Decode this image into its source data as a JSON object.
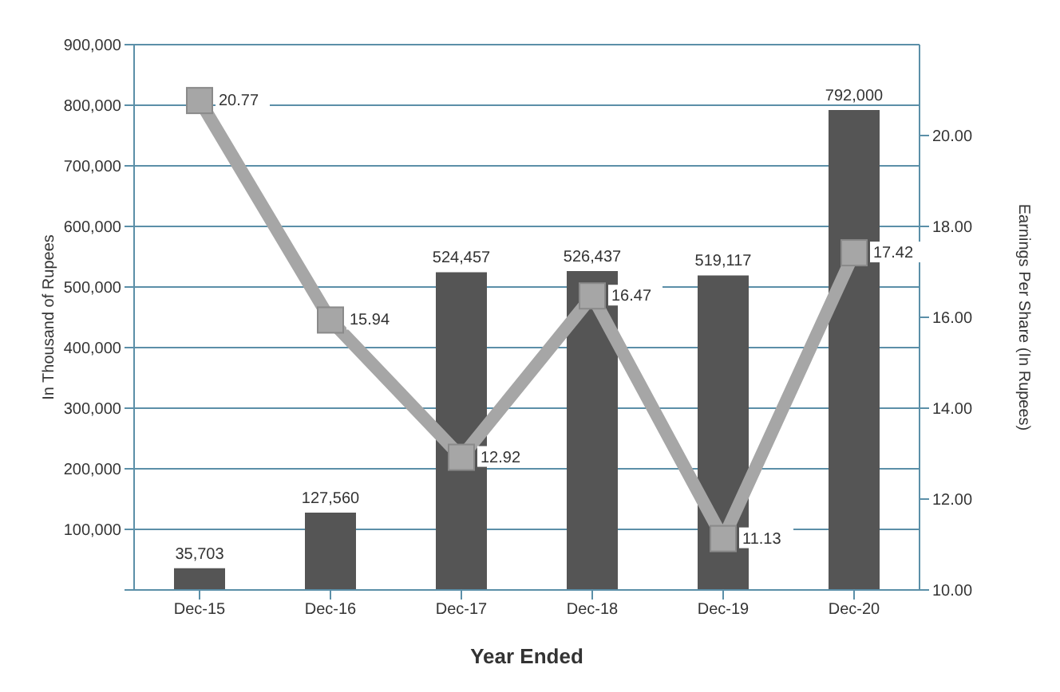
{
  "chart_data": {
    "type": "bar",
    "xlabel": "Year Ended",
    "ylabel": "In Thousand of Rupees",
    "y2label": "Earnings Per Share (In Rupees)",
    "categories": [
      "Dec-15",
      "Dec-16",
      "Dec-17",
      "Dec-18",
      "Dec-19",
      "Dec-20"
    ],
    "series": [
      {
        "color": "#555555",
        "values": [
          35703,
          127560,
          524457,
          526437,
          519117,
          792000
        ],
        "value_labels": [
          "35,703",
          "127,560",
          "524,457",
          "526,437",
          "519,117",
          "792,000"
        ]
      },
      {
        "type": "line",
        "axis": "y2",
        "color": "#a6a6a6",
        "values": [
          20.77,
          15.94,
          12.92,
          16.47,
          11.13,
          17.42
        ],
        "value_labels": [
          "20.77",
          "15.94",
          "12.92",
          "16.47",
          "11.13",
          "17.42"
        ]
      }
    ],
    "ylim": [
      0,
      900000
    ],
    "yticks": [
      {
        "value": 0,
        "label": null
      },
      "100,000",
      "200,000",
      "300,000",
      "400,000",
      "500,000",
      "600,000",
      "700,000",
      "800,000",
      "900,000"
    ],
    "y2lim": [
      10,
      22
    ],
    "y2ticks": [
      {
        "value": 10,
        "label": "10.00"
      },
      {
        "value": 12,
        "label": "12.00"
      },
      {
        "value": 14,
        "label": "14.00"
      },
      {
        "value": 16,
        "label": "16.00"
      },
      {
        "value": 18,
        "label": "18.00"
      },
      {
        "value": 20,
        "label": "20.00"
      }
    ],
    "grid": "y",
    "marker": "square",
    "legend": false
  }
}
